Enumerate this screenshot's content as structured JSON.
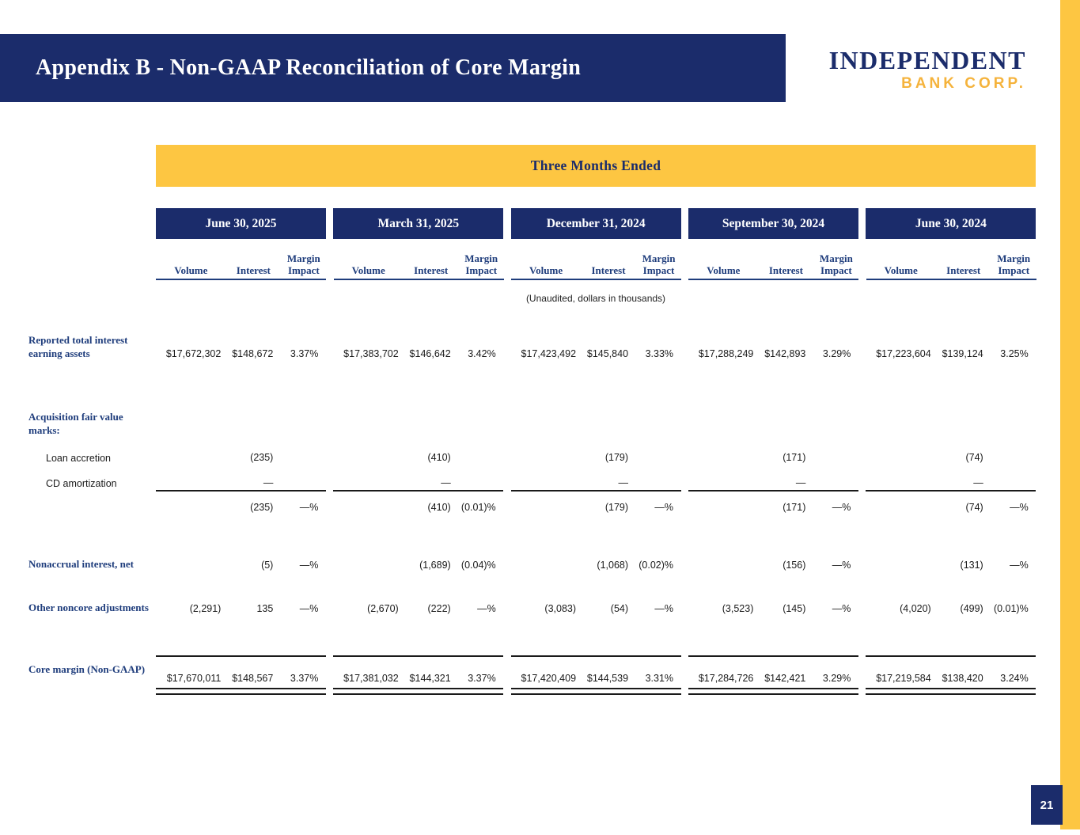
{
  "slide": {
    "title": "Appendix B - Non-GAAP Reconciliation of Core Margin",
    "logo": {
      "line1": "INDEPENDENT",
      "line2": "BANK CORP."
    },
    "page_number": "21",
    "colors": {
      "navy": "#1B2C6B",
      "gold": "#FDC642",
      "logo_gold": "#F5B33C"
    }
  },
  "table": {
    "banner": "Three Months Ended",
    "note": "(Unaudited, dollars in thousands)",
    "periods": [
      "June 30, 2025",
      "March 31, 2025",
      "December 31, 2024",
      "September 30, 2024",
      "June 30, 2024"
    ],
    "subheaders": [
      "Volume",
      "Interest",
      "Margin Impact"
    ],
    "rows": [
      {
        "label": "Reported total interest earning assets",
        "style": "main",
        "cells": [
          [
            "$17,672,302",
            "$148,672",
            "3.37%"
          ],
          [
            "$17,383,702",
            "$146,642",
            "3.42%"
          ],
          [
            "$17,423,492",
            "$145,840",
            "3.33%"
          ],
          [
            "$17,288,249",
            "$142,893",
            "3.29%"
          ],
          [
            "$17,223,604",
            "$139,124",
            "3.25%"
          ]
        ]
      },
      {
        "label": "Acquisition fair value marks:",
        "style": "main",
        "cells": []
      },
      {
        "label": "Loan accretion",
        "style": "sub",
        "cells": [
          [
            "",
            "(235)",
            ""
          ],
          [
            "",
            "(410)",
            ""
          ],
          [
            "",
            "(179)",
            ""
          ],
          [
            "",
            "(171)",
            ""
          ],
          [
            "",
            "(74)",
            ""
          ]
        ]
      },
      {
        "label": "CD amortization",
        "style": "sub",
        "cells": [
          [
            "",
            "—",
            ""
          ],
          [
            "",
            "—",
            ""
          ],
          [
            "",
            "—",
            ""
          ],
          [
            "",
            "—",
            ""
          ],
          [
            "",
            "—",
            ""
          ]
        ]
      },
      {
        "label": "",
        "style": "none",
        "cells": [
          [
            "",
            "(235)",
            "—%"
          ],
          [
            "",
            "(410)",
            "(0.01)%"
          ],
          [
            "",
            "(179)",
            "—%"
          ],
          [
            "",
            "(171)",
            "—%"
          ],
          [
            "",
            "(74)",
            "—%"
          ]
        ]
      },
      {
        "label": "Nonaccrual interest, net",
        "style": "main",
        "cells": [
          [
            "",
            "(5)",
            "—%"
          ],
          [
            "",
            "(1,689)",
            "(0.04)%"
          ],
          [
            "",
            "(1,068)",
            "(0.02)%"
          ],
          [
            "",
            "(156)",
            "—%"
          ],
          [
            "",
            "(131)",
            "—%"
          ]
        ]
      },
      {
        "label": "Other noncore adjustments",
        "style": "main",
        "cells": [
          [
            "(2,291)",
            "135",
            "—%"
          ],
          [
            "(2,670)",
            "(222)",
            "—%"
          ],
          [
            "(3,083)",
            "(54)",
            "—%"
          ],
          [
            "(3,523)",
            "(145)",
            "—%"
          ],
          [
            "(4,020)",
            "(499)",
            "(0.01)%"
          ]
        ]
      },
      {
        "label": "Core margin (Non-GAAP)",
        "style": "main",
        "cells": [
          [
            "$17,670,011",
            "$148,567",
            "3.37%"
          ],
          [
            "$17,381,032",
            "$144,321",
            "3.37%"
          ],
          [
            "$17,420,409",
            "$144,539",
            "3.31%"
          ],
          [
            "$17,284,726",
            "$142,421",
            "3.29%"
          ],
          [
            "$17,219,584",
            "$138,420",
            "3.24%"
          ]
        ]
      }
    ]
  }
}
